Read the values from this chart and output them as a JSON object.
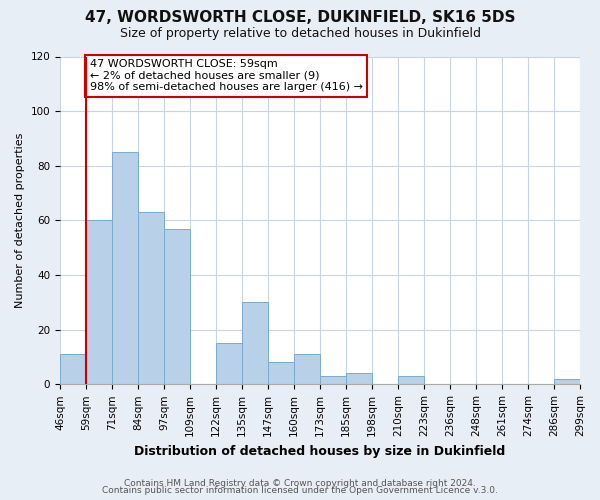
{
  "title": "47, WORDSWORTH CLOSE, DUKINFIELD, SK16 5DS",
  "subtitle": "Size of property relative to detached houses in Dukinfield",
  "xlabel": "Distribution of detached houses by size in Dukinfield",
  "ylabel": "Number of detached properties",
  "x_labels": [
    "46sqm",
    "59sqm",
    "71sqm",
    "84sqm",
    "97sqm",
    "109sqm",
    "122sqm",
    "135sqm",
    "147sqm",
    "160sqm",
    "173sqm",
    "185sqm",
    "198sqm",
    "210sqm",
    "223sqm",
    "236sqm",
    "248sqm",
    "261sqm",
    "274sqm",
    "286sqm",
    "299sqm"
  ],
  "bar_values": [
    11,
    60,
    85,
    63,
    57,
    0,
    15,
    30,
    8,
    11,
    3,
    4,
    0,
    3,
    0,
    0,
    0,
    0,
    0,
    2
  ],
  "bar_color": "#b8d0e8",
  "bar_edge_color": "#7aaace",
  "vline_color": "#cc0000",
  "vline_index": 1,
  "ylim": [
    0,
    120
  ],
  "yticks": [
    0,
    20,
    40,
    60,
    80,
    100,
    120
  ],
  "annotation_line1": "47 WORDSWORTH CLOSE: 59sqm",
  "annotation_line2": "← 2% of detached houses are smaller (9)",
  "annotation_line3": "98% of semi-detached houses are larger (416) →",
  "annotation_box_facecolor": "#ffffff",
  "annotation_box_edgecolor": "#cc0000",
  "footer1": "Contains HM Land Registry data © Crown copyright and database right 2024.",
  "footer2": "Contains public sector information licensed under the Open Government Licence v.3.0.",
  "background_color": "#e8eef5",
  "plot_bg_color": "#ffffff",
  "title_fontsize": 11,
  "subtitle_fontsize": 9,
  "ylabel_fontsize": 8,
  "xlabel_fontsize": 9,
  "tick_fontsize": 7.5,
  "annotation_fontsize": 8,
  "footer_fontsize": 6.5
}
